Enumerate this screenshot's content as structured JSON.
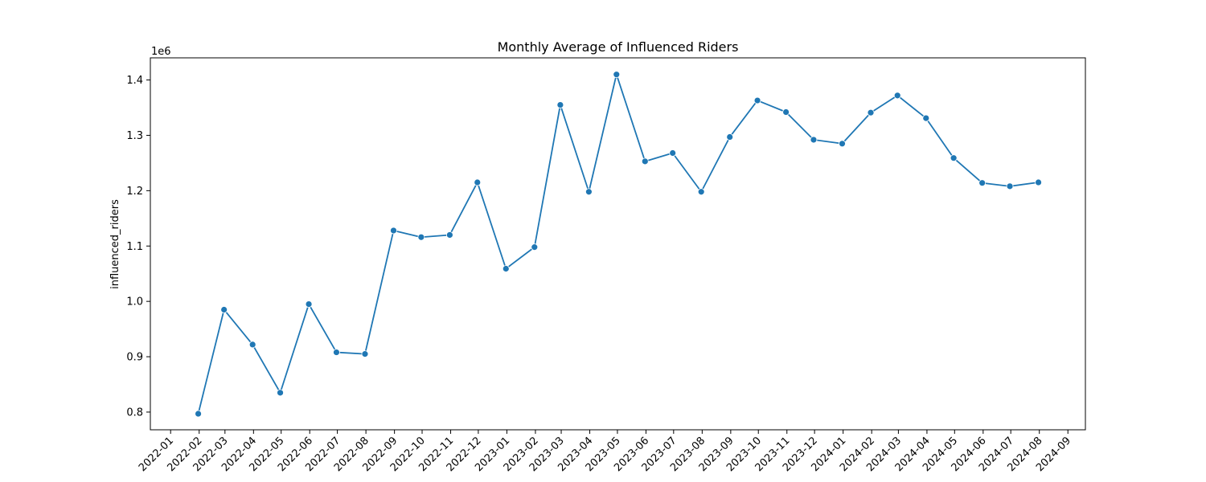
{
  "chart_data": {
    "type": "line",
    "title": "Monthly Average of Influenced Riders",
    "xlabel": "",
    "ylabel": "influenced_riders",
    "y_offset_label": "1e6",
    "y_multiplier": 1000000,
    "grid": false,
    "legend": "none",
    "color": "#1f77b4",
    "x_ticks": [
      "2022-01",
      "2022-02",
      "2022-03",
      "2022-04",
      "2022-05",
      "2022-06",
      "2022-07",
      "2022-08",
      "2022-09",
      "2022-10",
      "2022-11",
      "2022-12",
      "2023-01",
      "2023-02",
      "2023-03",
      "2023-04",
      "2023-05",
      "2023-06",
      "2023-07",
      "2023-08",
      "2023-09",
      "2023-10",
      "2023-11",
      "2023-12",
      "2024-01",
      "2024-02",
      "2024-03",
      "2024-04",
      "2024-05",
      "2024-06",
      "2024-07",
      "2024-08",
      "2024-09"
    ],
    "y_ticks": [
      "0.8",
      "0.9",
      "1.0",
      "1.1",
      "1.2",
      "1.3",
      "1.4"
    ],
    "y_tick_values": [
      800000,
      900000,
      1000000,
      1100000,
      1200000,
      1300000,
      1400000
    ],
    "ylim": [
      768000,
      1440000
    ],
    "x": [
      "2022-01-31",
      "2022-02-28",
      "2022-03-31",
      "2022-04-30",
      "2022-05-31",
      "2022-06-30",
      "2022-07-31",
      "2022-08-31",
      "2022-09-30",
      "2022-10-31",
      "2022-11-30",
      "2022-12-31",
      "2023-01-31",
      "2023-02-28",
      "2023-03-31",
      "2023-04-30",
      "2023-05-31",
      "2023-06-30",
      "2023-07-31",
      "2023-08-31",
      "2023-09-30",
      "2023-10-31",
      "2023-11-30",
      "2023-12-31",
      "2024-01-31",
      "2024-02-29",
      "2024-03-31",
      "2024-04-30",
      "2024-05-31",
      "2024-06-30",
      "2024-07-31"
    ],
    "values": [
      797000,
      985000,
      922000,
      835000,
      995000,
      908000,
      905000,
      1128000,
      1116000,
      1120000,
      1215000,
      1059000,
      1098000,
      1355000,
      1198000,
      1410000,
      1253000,
      1268000,
      1198000,
      1297000,
      1363000,
      1342000,
      1292000,
      1285000,
      1341000,
      1372000,
      1331000,
      1259000,
      1214000,
      1208000,
      1215000
    ]
  }
}
